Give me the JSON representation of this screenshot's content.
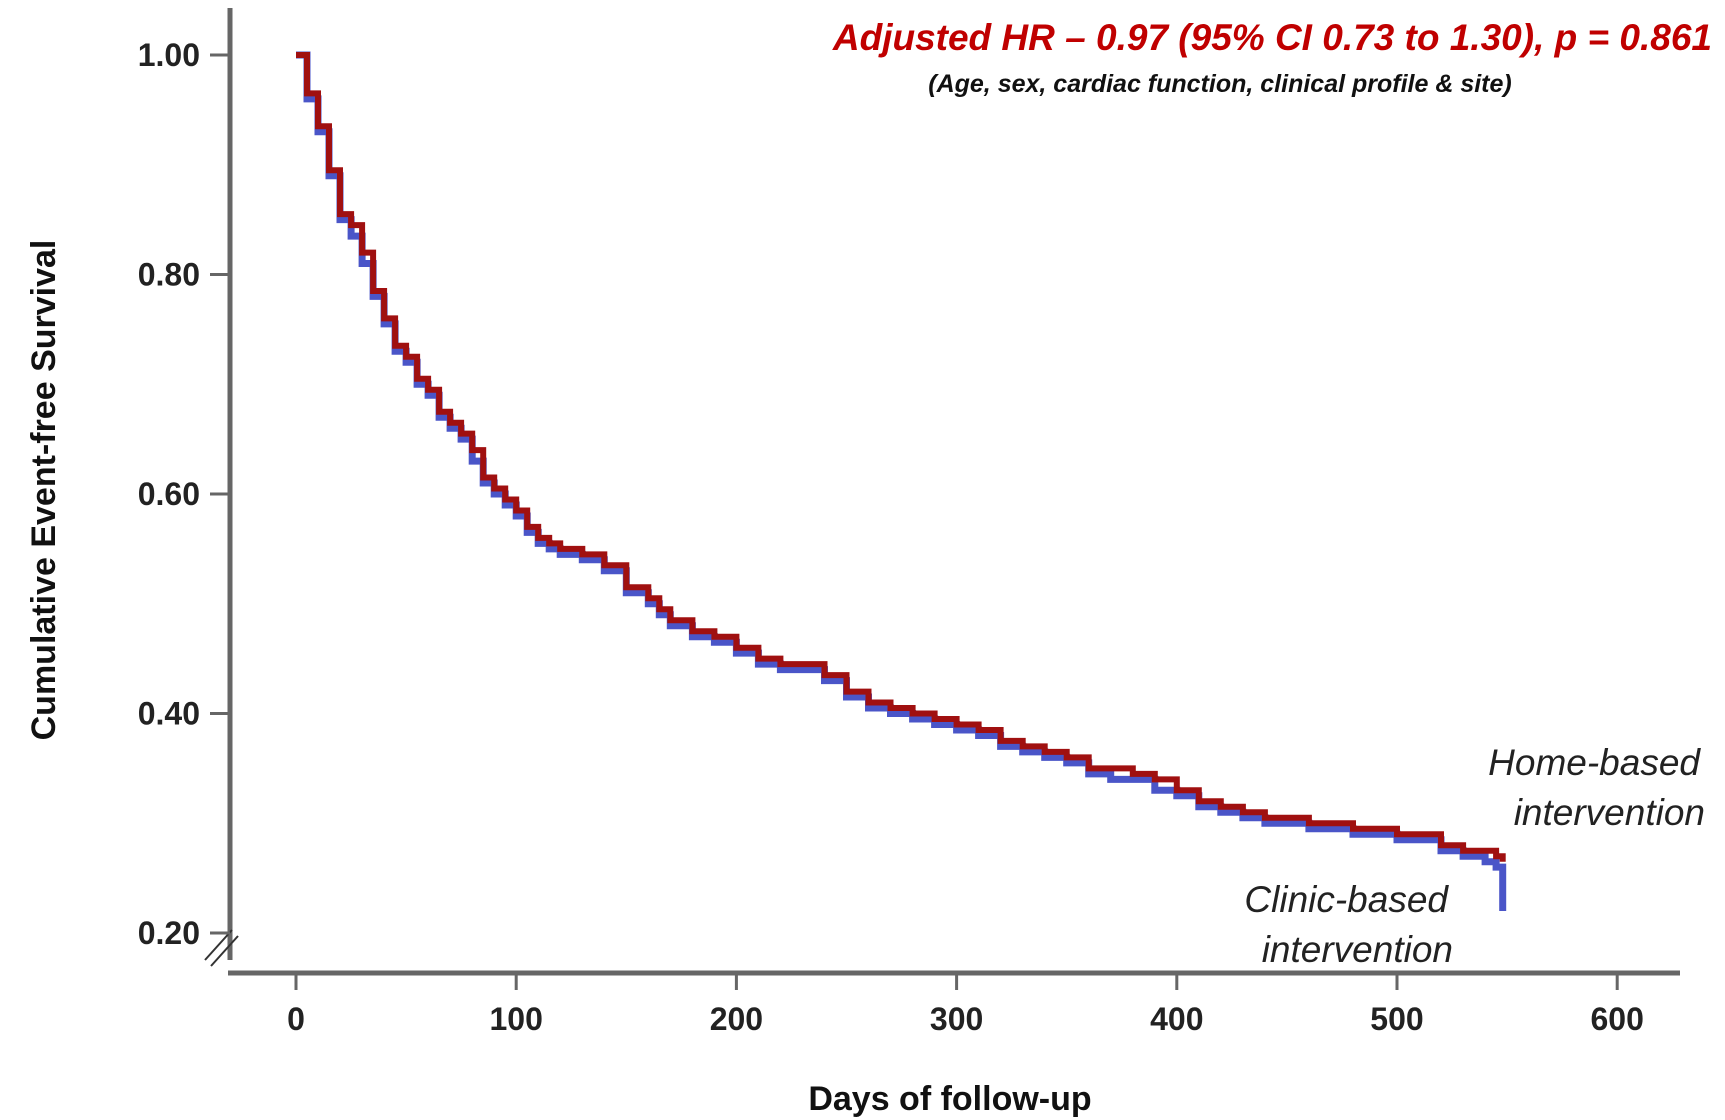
{
  "colors": {
    "home": "#a01010",
    "clinic": "#4a55c8",
    "annotation": "#c00000",
    "axis": "#666666"
  },
  "annotation": {
    "main": "Adjusted HR – 0.97 (95% CI 0.73 to 1.30), p = 0.861",
    "sub": "(Age, sex, cardiac function, clinical profile & site)"
  },
  "labels": {
    "home_line1": "Home-based",
    "home_line2": "intervention",
    "clinic_line1": "Clinic-based",
    "clinic_line2": "intervention"
  },
  "chart_data": {
    "type": "line",
    "title": "",
    "xlabel": "Days of follow-up",
    "ylabel": "Cumulative Event-free Survival",
    "xlim": [
      -30,
      630
    ],
    "ylim": [
      0.18,
      1.04
    ],
    "x_ticks": [
      0,
      100,
      200,
      300,
      400,
      500,
      600
    ],
    "x_tick_labels": [
      "0",
      "100",
      "200",
      "300",
      "400",
      "500",
      "600"
    ],
    "y_ticks": [
      0.2,
      0.4,
      0.6,
      0.8,
      1.0
    ],
    "y_tick_labels": [
      "0.20",
      "0.40",
      "0.60",
      "0.80",
      "1.00"
    ],
    "axis_break": "y",
    "grid": false,
    "step": true,
    "series": [
      {
        "name": "Clinic-based intervention",
        "color": "#4a55c8",
        "points": [
          [
            0,
            1.0
          ],
          [
            5,
            0.96
          ],
          [
            10,
            0.93
          ],
          [
            15,
            0.89
          ],
          [
            20,
            0.85
          ],
          [
            25,
            0.835
          ],
          [
            30,
            0.81
          ],
          [
            35,
            0.78
          ],
          [
            40,
            0.755
          ],
          [
            45,
            0.73
          ],
          [
            50,
            0.72
          ],
          [
            55,
            0.7
          ],
          [
            60,
            0.69
          ],
          [
            65,
            0.67
          ],
          [
            70,
            0.66
          ],
          [
            75,
            0.65
          ],
          [
            80,
            0.63
          ],
          [
            85,
            0.61
          ],
          [
            90,
            0.6
          ],
          [
            95,
            0.59
          ],
          [
            100,
            0.58
          ],
          [
            105,
            0.565
          ],
          [
            110,
            0.555
          ],
          [
            115,
            0.55
          ],
          [
            120,
            0.545
          ],
          [
            130,
            0.54
          ],
          [
            140,
            0.53
          ],
          [
            150,
            0.51
          ],
          [
            160,
            0.5
          ],
          [
            165,
            0.49
          ],
          [
            170,
            0.48
          ],
          [
            180,
            0.47
          ],
          [
            190,
            0.465
          ],
          [
            200,
            0.455
          ],
          [
            210,
            0.445
          ],
          [
            220,
            0.44
          ],
          [
            230,
            0.44
          ],
          [
            240,
            0.43
          ],
          [
            250,
            0.415
          ],
          [
            260,
            0.405
          ],
          [
            270,
            0.4
          ],
          [
            280,
            0.395
          ],
          [
            290,
            0.39
          ],
          [
            300,
            0.385
          ],
          [
            310,
            0.38
          ],
          [
            320,
            0.37
          ],
          [
            330,
            0.365
          ],
          [
            340,
            0.36
          ],
          [
            350,
            0.355
          ],
          [
            360,
            0.345
          ],
          [
            370,
            0.34
          ],
          [
            380,
            0.34
          ],
          [
            390,
            0.33
          ],
          [
            400,
            0.325
          ],
          [
            410,
            0.315
          ],
          [
            420,
            0.31
          ],
          [
            430,
            0.305
          ],
          [
            440,
            0.3
          ],
          [
            460,
            0.295
          ],
          [
            480,
            0.29
          ],
          [
            500,
            0.285
          ],
          [
            510,
            0.285
          ],
          [
            520,
            0.275
          ],
          [
            530,
            0.27
          ],
          [
            540,
            0.265
          ],
          [
            545,
            0.26
          ],
          [
            548,
            0.22
          ]
        ]
      },
      {
        "name": "Home-based intervention",
        "color": "#a01010",
        "points": [
          [
            0,
            1.0
          ],
          [
            5,
            0.965
          ],
          [
            10,
            0.935
          ],
          [
            15,
            0.895
          ],
          [
            20,
            0.855
          ],
          [
            25,
            0.845
          ],
          [
            30,
            0.82
          ],
          [
            35,
            0.785
          ],
          [
            40,
            0.76
          ],
          [
            45,
            0.735
          ],
          [
            50,
            0.725
          ],
          [
            55,
            0.705
          ],
          [
            60,
            0.695
          ],
          [
            65,
            0.675
          ],
          [
            70,
            0.665
          ],
          [
            75,
            0.655
          ],
          [
            80,
            0.64
          ],
          [
            85,
            0.615
          ],
          [
            90,
            0.605
          ],
          [
            95,
            0.595
          ],
          [
            100,
            0.585
          ],
          [
            105,
            0.57
          ],
          [
            110,
            0.56
          ],
          [
            115,
            0.555
          ],
          [
            120,
            0.55
          ],
          [
            130,
            0.545
          ],
          [
            140,
            0.535
          ],
          [
            150,
            0.515
          ],
          [
            160,
            0.505
          ],
          [
            165,
            0.495
          ],
          [
            170,
            0.485
          ],
          [
            180,
            0.475
          ],
          [
            190,
            0.47
          ],
          [
            200,
            0.46
          ],
          [
            210,
            0.45
          ],
          [
            220,
            0.445
          ],
          [
            230,
            0.445
          ],
          [
            240,
            0.435
          ],
          [
            250,
            0.42
          ],
          [
            260,
            0.41
          ],
          [
            270,
            0.405
          ],
          [
            280,
            0.4
          ],
          [
            290,
            0.395
          ],
          [
            300,
            0.39
          ],
          [
            310,
            0.385
          ],
          [
            320,
            0.375
          ],
          [
            330,
            0.37
          ],
          [
            340,
            0.365
          ],
          [
            350,
            0.36
          ],
          [
            360,
            0.35
          ],
          [
            370,
            0.35
          ],
          [
            380,
            0.345
          ],
          [
            390,
            0.34
          ],
          [
            400,
            0.33
          ],
          [
            410,
            0.32
          ],
          [
            420,
            0.315
          ],
          [
            430,
            0.31
          ],
          [
            440,
            0.305
          ],
          [
            460,
            0.3
          ],
          [
            480,
            0.295
          ],
          [
            500,
            0.29
          ],
          [
            510,
            0.29
          ],
          [
            520,
            0.28
          ],
          [
            530,
            0.275
          ],
          [
            540,
            0.275
          ],
          [
            545,
            0.27
          ],
          [
            548,
            0.265
          ]
        ]
      }
    ]
  }
}
